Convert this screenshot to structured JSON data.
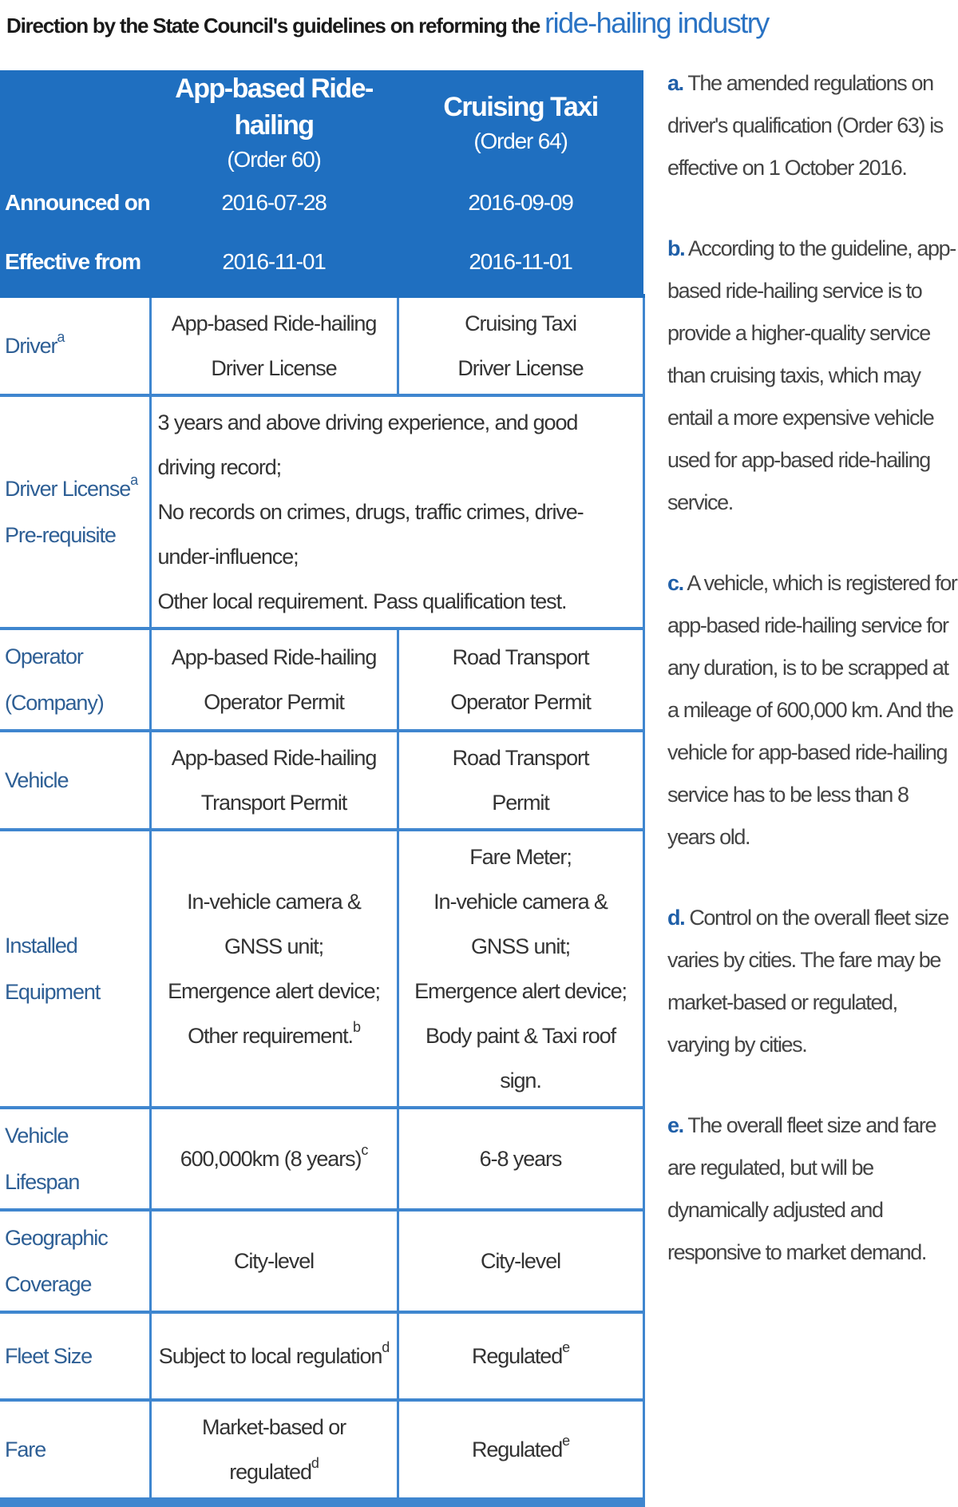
{
  "title": {
    "prefix": "Direction by the State Council's guidelines on reforming the",
    "highlight": "ride-hailing industry"
  },
  "table": {
    "columns": [
      {
        "name": "App-based Ride-hailing",
        "order": "(Order 60)"
      },
      {
        "name": "Cruising Taxi",
        "order": "(Order 64)"
      }
    ],
    "announced": {
      "label": "Announced on",
      "values": [
        "2016-07-28",
        "2016-09-09"
      ]
    },
    "effective": {
      "label": "Effective from",
      "values": [
        "2016-11-01",
        "2016-11-01"
      ]
    },
    "rows": {
      "driver": {
        "label": "Driver",
        "sup": "a",
        "app": [
          "App-based Ride-hailing",
          "Driver License"
        ],
        "taxi": [
          "Cruising Taxi",
          "Driver License"
        ]
      },
      "license": {
        "label": [
          "Driver License",
          "Pre-requisite"
        ],
        "sup": "a",
        "text": [
          "3 years and above driving experience, and good driving record;",
          "No records on crimes, drugs, traffic crimes, drive-under-influence;",
          "Other local requirement. Pass qualification test."
        ]
      },
      "operator": {
        "label": [
          "Operator",
          "(Company)"
        ],
        "app": [
          "App-based Ride-hailing",
          "Operator Permit"
        ],
        "taxi": [
          "Road Transport",
          "Operator Permit"
        ]
      },
      "vehicle": {
        "label": "Vehicle",
        "app": [
          "App-based Ride-hailing",
          "Transport Permit"
        ],
        "taxi": [
          "Road Transport",
          "Permit"
        ]
      },
      "equipment": {
        "label": [
          "Installed",
          "Equipment"
        ],
        "app": [
          "In-vehicle camera & GNSS unit;",
          "Emergence alert device;",
          "Other requirement."
        ],
        "app_sup": "b",
        "taxi": [
          "Fare Meter;",
          "In-vehicle camera & GNSS unit;",
          "Emergence alert device;",
          "Body paint & Taxi roof sign."
        ]
      },
      "lifespan": {
        "label": "Vehicle Lifespan",
        "app": "600,000km (8 years)",
        "app_sup": "c",
        "taxi": "6-8 years"
      },
      "coverage": {
        "label": [
          "Geographic",
          "Coverage"
        ],
        "app": "City-level",
        "taxi": "City-level"
      },
      "fleet": {
        "label": "Fleet Size",
        "app": "Subject to local regulation",
        "app_sup": "d",
        "taxi": "Regulated",
        "taxi_sup": "e"
      },
      "fare": {
        "label": "Fare",
        "app": "Market-based or regulated",
        "app_sup": "d",
        "taxi": "Regulated",
        "taxi_sup": "e"
      }
    }
  },
  "notes": [
    {
      "letter": "a.",
      "text": "The amended regulations on driver's qualification (Order 63) is effective on 1 October 2016."
    },
    {
      "letter": "b.",
      "text": "According to the guideline, app-based ride-hailing service is to provide a higher-quality service than cruising taxis, which may entail a more expensive vehicle used for app-based ride-hailing service."
    },
    {
      "letter": "c.",
      "text": "A vehicle, which is registered for app-based ride-hailing service for any duration, is to be scrapped at a mileage of 600,000 km. And the vehicle for app-based ride-hailing service has to be less than 8 years old."
    },
    {
      "letter": "d.",
      "text": "Control on the overall fleet size varies by cities. The fare may be market-based or regulated, varying by cities."
    },
    {
      "letter": "e.",
      "text": "The overall fleet size and fare are regulated, but will be dynamically adjusted and responsive to market demand."
    }
  ]
}
